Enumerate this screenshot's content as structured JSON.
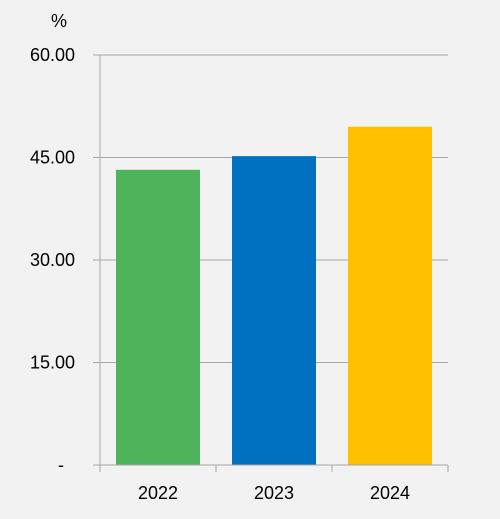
{
  "chart_data": {
    "type": "bar",
    "title": "",
    "xlabel": "",
    "ylabel": "",
    "unit": "%",
    "categories": [
      "2022",
      "2023",
      "2024"
    ],
    "values": [
      43.2,
      45.2,
      49.5
    ],
    "colors": [
      "#4eb45c",
      "#0070c0",
      "#ffc000"
    ],
    "ylim": [
      0,
      60
    ],
    "y_ticks": [
      0,
      15,
      30,
      45,
      60
    ],
    "y_tick_labels": [
      "-",
      "15.00",
      "30.00",
      "45.00",
      "60.00"
    ],
    "grid": true,
    "legend": "none",
    "background": "#f2f2f2",
    "gridline_color": "#a6a6a6"
  }
}
